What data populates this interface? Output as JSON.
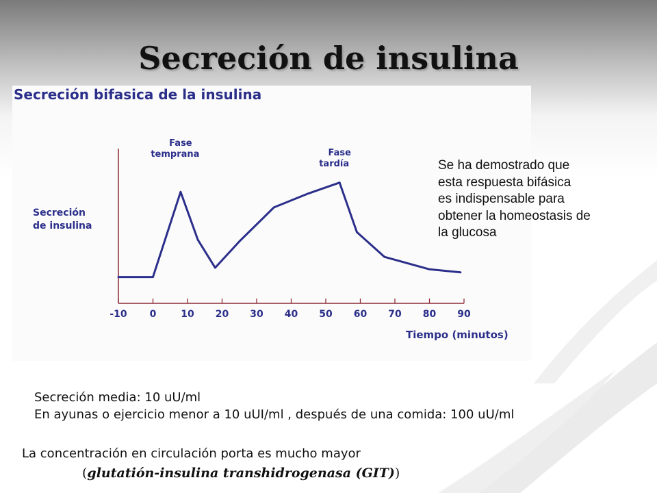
{
  "slide": {
    "title": "Secreción de insulina",
    "note_lines": [
      "Se ha demostrado que",
      "esta respuesta bifásica",
      "es indispensable para",
      "obtener la homeostasis de",
      "la glucosa"
    ],
    "stats_lines": [
      "Secreción media: 10 uU/ml",
      "En ayunas o ejercicio menor a 10 uUI/ml , después de una comida: 100 uU/ml"
    ],
    "portal_line": "La concentración en circulación porta es mucho mayor",
    "enzyme_open": "(",
    "enzyme_name": "glutatión-insulina transhidrogenasa (GIT)",
    "enzyme_close": ")"
  },
  "chart_data": {
    "type": "line",
    "title": "Secreción bifasica de la insulina",
    "ylabel": [
      "Secreción",
      "de insulina"
    ],
    "xlabel": "Tiempo (minutos)",
    "xlim": [
      -10,
      90
    ],
    "ylim": [
      0,
      100
    ],
    "x_ticks": [
      -10,
      0,
      10,
      20,
      30,
      40,
      50,
      60,
      70,
      80,
      90
    ],
    "annotations": [
      {
        "lines": [
          "Fase",
          "temprana"
        ],
        "x": 8
      },
      {
        "lines": [
          "Fase",
          "tardía"
        ],
        "x": 54
      }
    ],
    "series": [
      {
        "color": "#2b2f8a",
        "x": [
          -10,
          0,
          8,
          13,
          18,
          25,
          35,
          45,
          54,
          59,
          67,
          80,
          89
        ],
        "y": [
          17,
          17,
          72,
          41,
          23,
          40,
          62,
          71,
          78,
          46,
          30,
          22,
          20
        ]
      }
    ]
  }
}
